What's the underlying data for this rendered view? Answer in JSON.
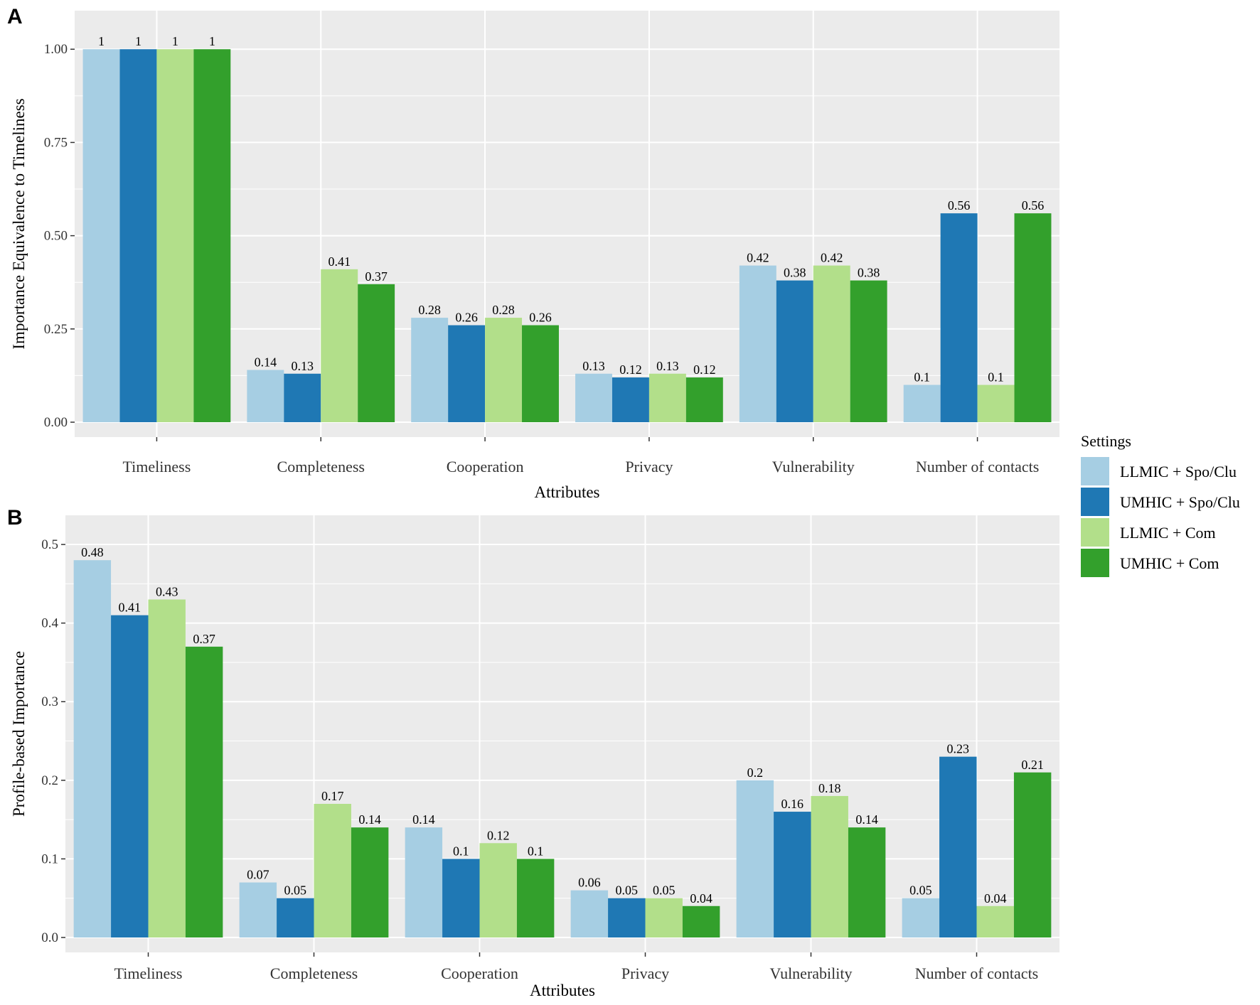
{
  "colors": {
    "panel_bg": "#EBEBEB",
    "grid": "#FFFFFF",
    "tick": "#333333",
    "series": [
      "#A6CEE3",
      "#1F78B4",
      "#B2DF8A",
      "#33A02C"
    ]
  },
  "legend": {
    "title": "Settings",
    "entries": [
      "LLMIC + Spo/Clu",
      "UMHIC + Spo/Clu",
      "LLMIC + Com",
      "UMHIC + Com"
    ]
  },
  "chart_data": [
    {
      "panel": "A",
      "type": "bar",
      "xlabel": "Attributes",
      "ylabel": "Importance Equivalence to Timeliness",
      "ylim": [
        0,
        1.05
      ],
      "yticks": [
        "0.00",
        "0.25",
        "0.50",
        "0.75",
        "1.00"
      ],
      "ytick_values": [
        0,
        0.25,
        0.5,
        0.75,
        1.0
      ],
      "categories": [
        "Timeliness",
        "Completeness",
        "Cooperation",
        "Privacy",
        "Vulnerability",
        "Number of contacts"
      ],
      "series": [
        {
          "name": "LLMIC + Spo/Clu",
          "values": [
            1,
            0.14,
            0.28,
            0.13,
            0.42,
            0.1
          ],
          "labels": [
            "1",
            "0.14",
            "0.28",
            "0.13",
            "0.42",
            "0.1"
          ]
        },
        {
          "name": "UMHIC + Spo/Clu",
          "values": [
            1,
            0.13,
            0.26,
            0.12,
            0.38,
            0.56
          ],
          "labels": [
            "1",
            "0.13",
            "0.26",
            "0.12",
            "0.38",
            "0.56"
          ]
        },
        {
          "name": "LLMIC + Com",
          "values": [
            1,
            0.41,
            0.28,
            0.13,
            0.42,
            0.1
          ],
          "labels": [
            "1",
            "0.41",
            "0.28",
            "0.13",
            "0.42",
            "0.1"
          ]
        },
        {
          "name": "UMHIC + Com",
          "values": [
            1,
            0.37,
            0.26,
            0.12,
            0.38,
            0.56
          ],
          "labels": [
            "1",
            "0.37",
            "0.26",
            "0.12",
            "0.38",
            "0.56"
          ]
        }
      ],
      "grid": true
    },
    {
      "panel": "B",
      "type": "bar",
      "xlabel": "Attributes",
      "ylabel": "Profile-based Importance",
      "ylim": [
        0,
        0.51
      ],
      "yticks": [
        "0.0",
        "0.1",
        "0.2",
        "0.3",
        "0.4",
        "0.5"
      ],
      "ytick_values": [
        0,
        0.1,
        0.2,
        0.3,
        0.4,
        0.5
      ],
      "categories": [
        "Timeliness",
        "Completeness",
        "Cooperation",
        "Privacy",
        "Vulnerability",
        "Number of contacts"
      ],
      "series": [
        {
          "name": "LLMIC + Spo/Clu",
          "values": [
            0.48,
            0.07,
            0.14,
            0.06,
            0.2,
            0.05
          ],
          "labels": [
            "0.48",
            "0.07",
            "0.14",
            "0.06",
            "0.2",
            "0.05"
          ]
        },
        {
          "name": "UMHIC + Spo/Clu",
          "values": [
            0.41,
            0.05,
            0.1,
            0.05,
            0.16,
            0.23
          ],
          "labels": [
            "0.41",
            "0.05",
            "0.1",
            "0.05",
            "0.16",
            "0.23"
          ]
        },
        {
          "name": "LLMIC + Com",
          "values": [
            0.43,
            0.17,
            0.12,
            0.05,
            0.18,
            0.04
          ],
          "labels": [
            "0.43",
            "0.17",
            "0.12",
            "0.05",
            "0.18",
            "0.04"
          ]
        },
        {
          "name": "UMHIC + Com",
          "values": [
            0.37,
            0.14,
            0.1,
            0.04,
            0.14,
            0.21
          ],
          "labels": [
            "0.37",
            "0.14",
            "0.1",
            "0.04",
            "0.14",
            "0.21"
          ]
        }
      ],
      "grid": true
    }
  ]
}
